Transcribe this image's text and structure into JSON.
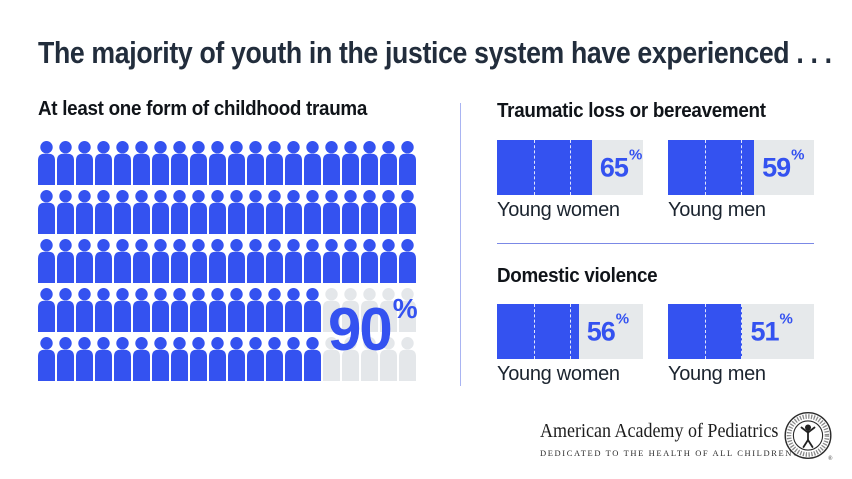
{
  "title": "The majority of youth in the justice system have experienced . . .",
  "colors": {
    "accent_blue": "#3452f0",
    "icon_gray": "#e4e7ea",
    "track_gray": "#e6e9eb",
    "title_navy": "#222d3c",
    "heading_black": "#101419",
    "label_navy": "#1b242f",
    "divider_vertical": "#a9b4f2",
    "divider_horizontal": "#7b89e6"
  },
  "chart_data": [
    {
      "type": "pictogram",
      "title": "At least one form of childhood trauma",
      "value": 90,
      "value_label": "90",
      "unit": "%",
      "total_icons": 100,
      "columns": 20,
      "rows": 5,
      "filled_per_row": [
        20,
        20,
        20,
        15,
        15
      ],
      "icon": "person-icon",
      "filled_color": "#3452f0",
      "empty_color": "#e4e7ea"
    },
    {
      "type": "bar",
      "title": "Traumatic loss or bereavement",
      "orientation": "horizontal",
      "categories": [
        "Young women",
        "Young men"
      ],
      "values": [
        65,
        59
      ],
      "unit": "%",
      "xlim": [
        0,
        100
      ],
      "gridlines": [
        25,
        50,
        75
      ],
      "legend": "none"
    },
    {
      "type": "bar",
      "title": "Domestic violence",
      "orientation": "horizontal",
      "categories": [
        "Young women",
        "Young men"
      ],
      "values": [
        56,
        51
      ],
      "unit": "%",
      "xlim": [
        0,
        100
      ],
      "gridlines": [
        25,
        50,
        75
      ],
      "legend": "none"
    }
  ],
  "footer": {
    "org_name": "American Academy of Pediatrics",
    "tagline": "DEDICATED TO THE HEALTH OF ALL CHILDREN®"
  }
}
